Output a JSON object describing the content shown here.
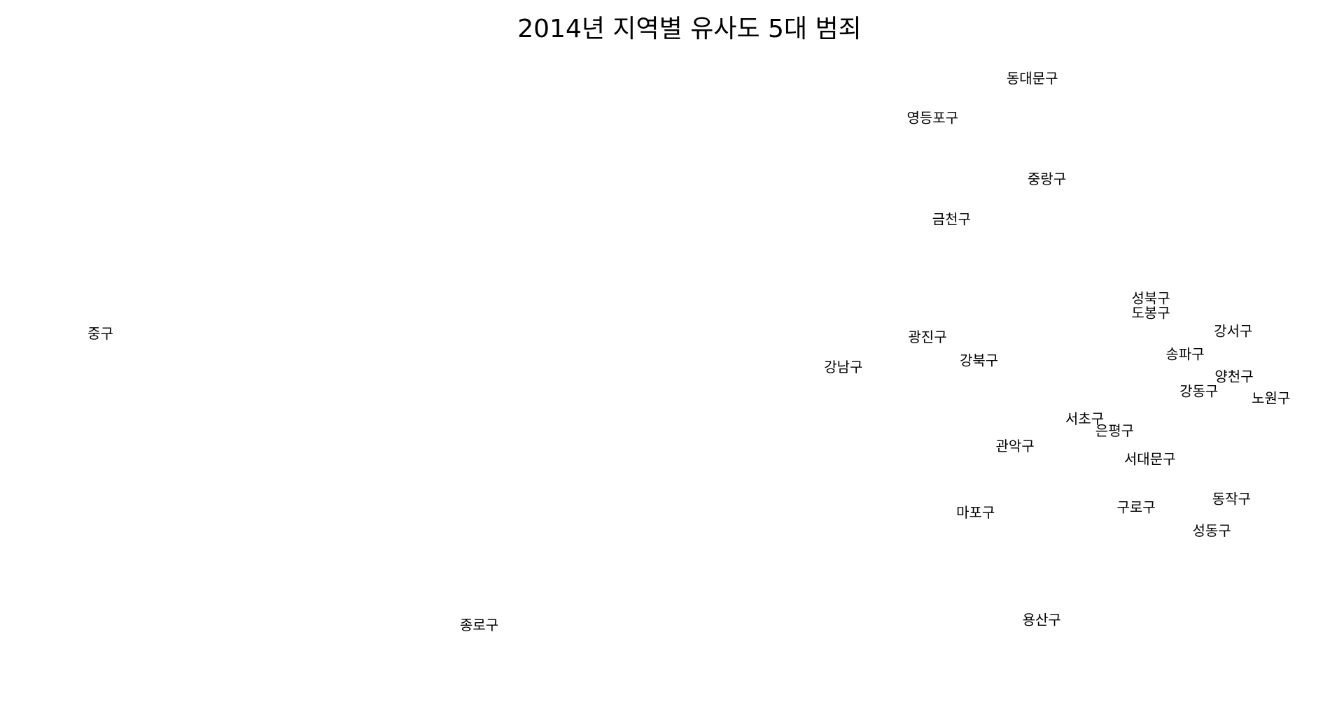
{
  "chart_data": {
    "type": "scatter",
    "title": "2014년 지역별 유사도 5대 범죄",
    "xlabel": "",
    "ylabel": "",
    "grid": false,
    "legend": "none",
    "axes_visible": false,
    "points": [
      {
        "label": "동대문구",
        "x": 1202,
        "y": -91
      },
      {
        "label": "영등포구",
        "x": 1086,
        "y": -137
      },
      {
        "label": "중랑구",
        "x": 1219,
        "y": -208
      },
      {
        "label": "금천구",
        "x": 1108,
        "y": -255
      },
      {
        "label": "성북구",
        "x": 1340,
        "y": -347
      },
      {
        "label": "도봉구",
        "x": 1340,
        "y": -364
      },
      {
        "label": "중구",
        "x": 117,
        "y": -388
      },
      {
        "label": "광진구",
        "x": 1080,
        "y": -392
      },
      {
        "label": "강서구",
        "x": 1436,
        "y": -385
      },
      {
        "label": "송파구",
        "x": 1380,
        "y": -412
      },
      {
        "label": "강북구",
        "x": 1140,
        "y": -419
      },
      {
        "label": "강남구",
        "x": 982,
        "y": -427
      },
      {
        "label": "양천구",
        "x": 1437,
        "y": -438
      },
      {
        "label": "강동구",
        "x": 1396,
        "y": -455
      },
      {
        "label": "노원구",
        "x": 1480,
        "y": -463
      },
      {
        "label": "서초구",
        "x": 1263,
        "y": -487
      },
      {
        "label": "은평구",
        "x": 1298,
        "y": -501
      },
      {
        "label": "관악구",
        "x": 1182,
        "y": -519
      },
      {
        "label": "서대문구",
        "x": 1339,
        "y": -534
      },
      {
        "label": "동작구",
        "x": 1434,
        "y": -580
      },
      {
        "label": "구로구",
        "x": 1323,
        "y": -590
      },
      {
        "label": "마포구",
        "x": 1136,
        "y": -596
      },
      {
        "label": "성동구",
        "x": 1411,
        "y": -617
      },
      {
        "label": "용산구",
        "x": 1213,
        "y": -721
      },
      {
        "label": "종로구",
        "x": 558,
        "y": -727
      }
    ]
  }
}
